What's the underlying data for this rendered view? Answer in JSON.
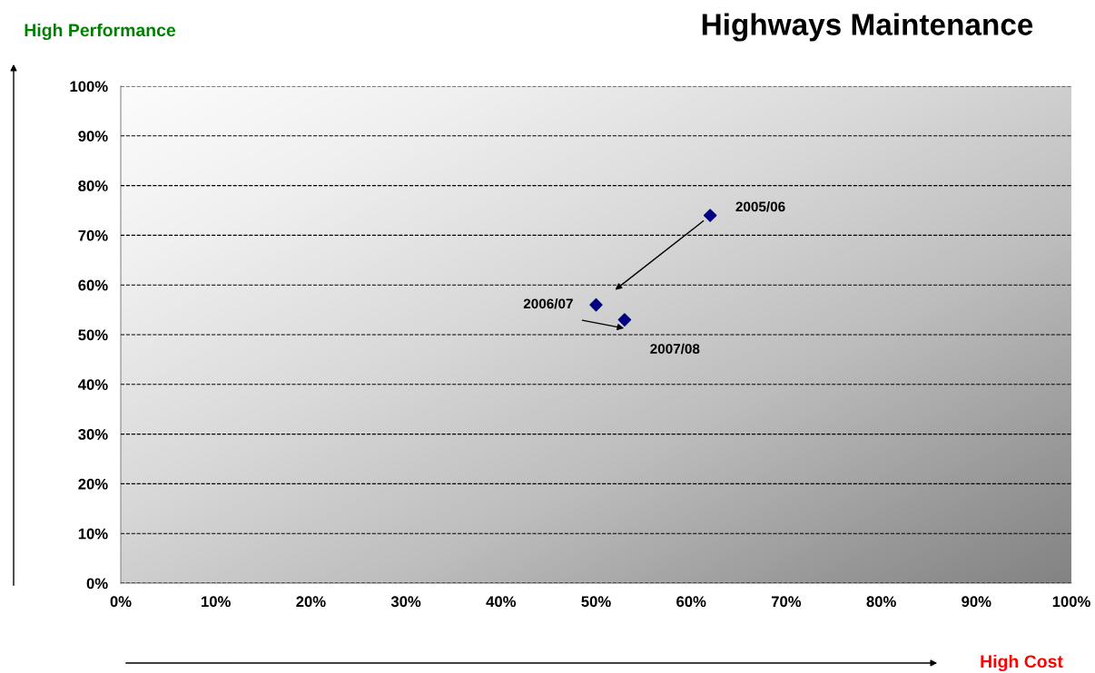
{
  "chart_data": {
    "type": "scatter",
    "title": "Highways Maintenance",
    "xlabel": "High Cost",
    "ylabel": "High Performance",
    "x": [
      62,
      50,
      53
    ],
    "series": [
      {
        "color": "#000080",
        "values": [
          74,
          56,
          53
        ]
      }
    ],
    "marker": "diamond",
    "grid": "y",
    "xlim": [
      0,
      100
    ],
    "ylim": [
      0,
      100
    ],
    "xticks": [
      {
        "value": 0,
        "label": "0%"
      },
      {
        "value": 10,
        "label": "10%"
      },
      {
        "value": 20,
        "label": "20%"
      },
      {
        "value": 30,
        "label": "30%"
      },
      {
        "value": 40,
        "label": "40%"
      },
      {
        "value": 50,
        "label": "50%"
      },
      {
        "value": 60,
        "label": "60%"
      },
      {
        "value": 70,
        "label": "70%"
      },
      {
        "value": 80,
        "label": "80%"
      },
      {
        "value": 90,
        "label": "90%"
      },
      {
        "value": 100,
        "label": "100%"
      }
    ],
    "yticks": [
      {
        "value": 0,
        "label": "0%"
      },
      {
        "value": 10,
        "label": "10%"
      },
      {
        "value": 20,
        "label": "20%"
      },
      {
        "value": 30,
        "label": "30%"
      },
      {
        "value": 40,
        "label": "40%"
      },
      {
        "value": 50,
        "label": "50%"
      },
      {
        "value": 60,
        "label": "60%"
      },
      {
        "value": 70,
        "label": "70%"
      },
      {
        "value": 80,
        "label": "80%"
      },
      {
        "value": 90,
        "label": "90%"
      },
      {
        "value": 100,
        "label": "100%"
      }
    ],
    "annotations": [
      {
        "text": "2005/06",
        "x": 62,
        "y": 74
      },
      {
        "text": "2006/07",
        "x": 50,
        "y": 56
      },
      {
        "text": "2007/08",
        "x": 53,
        "y": 53
      }
    ]
  }
}
